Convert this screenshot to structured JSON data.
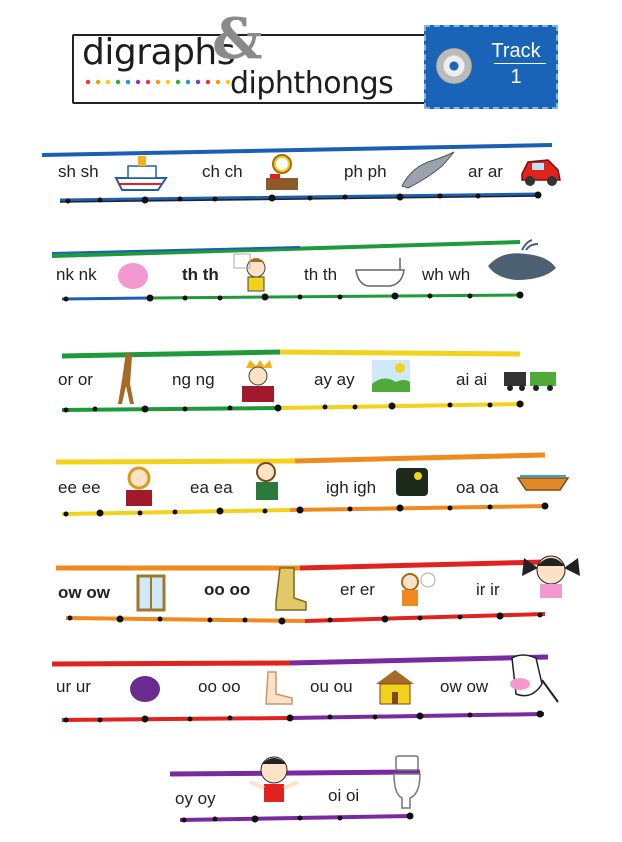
{
  "header": {
    "title_line1": "digraphs",
    "ampersand": "&",
    "title_line2": "diphthongs",
    "track_label": "Track",
    "track_number": "1"
  },
  "rows": [
    {
      "items": [
        "sh sh",
        "ch ch",
        "ph ph",
        "ar ar"
      ],
      "pictures": [
        "ship-picture",
        "clock-desk-picture",
        "dolphin-picture",
        "car-picture"
      ]
    },
    {
      "items": [
        "nk nk",
        "th th",
        "th th",
        "wh wh"
      ],
      "pictures": [
        "pink-blob-picture",
        "thinking-boy-picture",
        "bathtub-picture",
        "whale-picture"
      ]
    },
    {
      "items": [
        "or or",
        "ng ng",
        "ay ay",
        "ai ai"
      ],
      "pictures": [
        "horse-picture",
        "king-picture",
        "day-picture",
        "train-picture"
      ]
    },
    {
      "items": [
        "ee ee",
        "ea ea",
        "igh igh",
        "oa oa"
      ],
      "pictures": [
        "queen-picture",
        "boy-eating-picture",
        "night-picture",
        "boat-picture"
      ]
    },
    {
      "items": [
        "ow ow",
        "oo oo",
        "er er",
        "ir ir"
      ],
      "pictures": [
        "window-picture",
        "boot-picture",
        "flower-girl-picture",
        "girl-picture"
      ]
    },
    {
      "items": [
        "ur ur",
        "oo oo",
        "ou ou",
        "ow ow"
      ],
      "pictures": [
        "purple-blob-picture",
        "foot-picture",
        "house-picture",
        "cow-picture"
      ]
    },
    {
      "items": [
        "oy oy",
        "oi oi"
      ],
      "pictures": [
        "boy-picture",
        "toilet-picture"
      ]
    }
  ],
  "colors": {
    "blue": "#1a5fb4",
    "green": "#1e9a3a",
    "yellow": "#f2d21a",
    "orange": "#f08a1e",
    "red": "#e0231e",
    "purple": "#7a2aa0",
    "track_bg": "#1a64b8"
  }
}
